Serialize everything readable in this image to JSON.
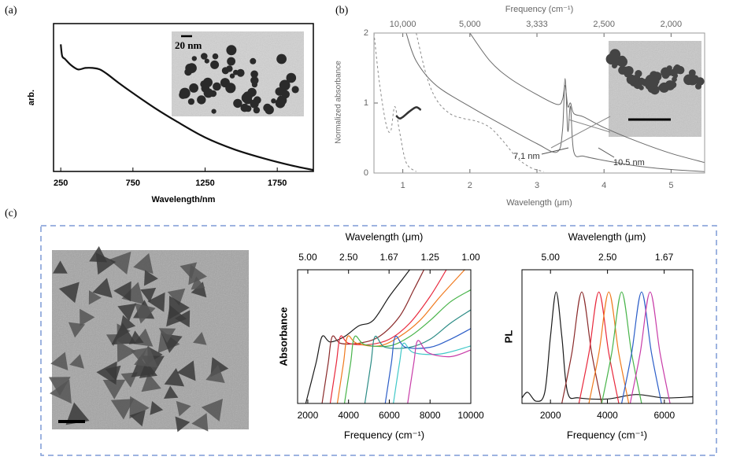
{
  "chart_data": [
    {
      "type": "line",
      "label": "(a)",
      "xlabel": "Wavelength/nm",
      "ylabel": "arb.",
      "inset_label": "20 nm",
      "xlim": [
        200,
        2000
      ],
      "xticks": [
        250,
        750,
        1250,
        1750
      ],
      "ylim": [
        0,
        1
      ],
      "series": [
        {
          "color": "#111111",
          "x": [
            250,
            260,
            280,
            320,
            370,
            420,
            470,
            520,
            570,
            650,
            750,
            900,
            1050,
            1250,
            1450,
            1650,
            1850,
            2000
          ],
          "values": [
            0.86,
            0.78,
            0.76,
            0.72,
            0.69,
            0.7,
            0.7,
            0.69,
            0.66,
            0.6,
            0.53,
            0.43,
            0.34,
            0.23,
            0.15,
            0.09,
            0.04,
            0.01
          ]
        }
      ]
    },
    {
      "type": "line",
      "label": "(b)",
      "xlabel": "Wavelength (μm)",
      "ylabel": "Normalized absorbance",
      "x2label": "Frequency (cm⁻¹)",
      "annotations": [
        "7.1 nm",
        "10.5 nm"
      ],
      "xlim": [
        0.57,
        5.5
      ],
      "xticks": [
        1,
        2,
        3,
        4,
        5
      ],
      "ylim": [
        0,
        2
      ],
      "yticks": [
        0,
        1,
        2
      ],
      "x2lim": [
        17544,
        1818
      ],
      "x2ticks": [
        {
          "value": 10000,
          "label": "10,000"
        },
        {
          "value": 5000,
          "label": "5,000"
        },
        {
          "value": 3333,
          "label": "3,333"
        },
        {
          "value": 2500,
          "label": "2,500"
        },
        {
          "value": 2000,
          "label": "2,000"
        }
      ],
      "series": [
        {
          "color": "#8a8a8a",
          "dashed": true,
          "x": [
            0.57,
            0.65,
            0.75,
            0.82,
            0.88,
            0.95,
            1.05,
            1.2
          ],
          "values": [
            2.0,
            1.3,
            0.7,
            0.6,
            0.95,
            0.6,
            0.15,
            0.02
          ]
        },
        {
          "color": "#8a8a8a",
          "dashed": true,
          "x": [
            1.2,
            1.35,
            1.5,
            1.7,
            1.9,
            2.1,
            2.3,
            2.5,
            2.7,
            2.9,
            3.1
          ],
          "values": [
            2.0,
            1.4,
            1.05,
            0.85,
            0.78,
            0.74,
            0.65,
            0.45,
            0.22,
            0.08,
            0.02
          ]
        },
        {
          "color": "#6a6a6a",
          "x": [
            1.05,
            1.2,
            1.5,
            2.0,
            2.5,
            3.0,
            3.3,
            3.38,
            3.42,
            3.46,
            3.5,
            3.55,
            3.7,
            4.0,
            4.5,
            5.0,
            5.5
          ],
          "values": [
            2.0,
            1.6,
            1.25,
            0.95,
            0.68,
            0.42,
            0.3,
            0.6,
            1.35,
            0.6,
            0.95,
            0.3,
            0.24,
            0.18,
            0.1,
            0.05,
            0.02
          ]
        },
        {
          "color": "#6a6a6a",
          "x": [
            2.0,
            2.3,
            2.6,
            3.0,
            3.3,
            3.38,
            3.42,
            3.46,
            3.5,
            3.55,
            3.7,
            4.0,
            4.5,
            5.0,
            5.5
          ],
          "values": [
            2.0,
            1.6,
            1.35,
            1.12,
            0.98,
            1.05,
            1.25,
            0.95,
            1.0,
            0.85,
            0.8,
            0.65,
            0.45,
            0.28,
            0.15
          ]
        },
        {
          "color": "#333333",
          "line_width": 2.5,
          "x": [
            0.9,
            0.95,
            1.0,
            1.1,
            1.2,
            1.27
          ],
          "values": [
            0.82,
            0.78,
            0.8,
            0.88,
            0.94,
            0.9
          ]
        }
      ]
    },
    {
      "type": "line",
      "label": "(c)",
      "xlabel": "Frequency (cm⁻¹)",
      "ylabel": "Absorbance",
      "x2label": "Wavelength (μm)",
      "xlim": [
        1500,
        10000
      ],
      "xticks": [
        2000,
        4000,
        6000,
        8000,
        10000
      ],
      "ylim": [
        0,
        1
      ],
      "x2lim": [
        6.67,
        1.0
      ],
      "x2ticks": [
        {
          "value": 5,
          "label": "5.00"
        },
        {
          "value": 2.5,
          "label": "2.50"
        },
        1.67,
        1.25,
        {
          "value": 1,
          "label": "1.00"
        }
      ],
      "series": [
        {
          "color": "#1a1a1a",
          "x": [
            1900,
            2400,
            2700,
            3100,
            3800,
            4500,
            5200,
            6000,
            6600,
            7000
          ],
          "values": [
            0,
            0.3,
            0.5,
            0.46,
            0.5,
            0.58,
            0.62,
            0.8,
            0.92,
            1.0
          ]
        },
        {
          "color": "#8a2a2a",
          "x": [
            2700,
            3000,
            3200,
            3600,
            4500,
            5500,
            6500,
            7200,
            7700
          ],
          "values": [
            0,
            0.3,
            0.5,
            0.45,
            0.45,
            0.5,
            0.65,
            0.85,
            1.0
          ]
        },
        {
          "color": "#e8283c",
          "x": [
            3100,
            3400,
            3600,
            4000,
            5000,
            6000,
            7000,
            8000,
            8800
          ],
          "values": [
            0,
            0.3,
            0.5,
            0.45,
            0.44,
            0.48,
            0.6,
            0.8,
            1.0
          ]
        },
        {
          "color": "#f07a1e",
          "x": [
            3450,
            3750,
            3950,
            4400,
            5500,
            6500,
            7500,
            8500,
            9700
          ],
          "values": [
            0,
            0.3,
            0.5,
            0.45,
            0.43,
            0.5,
            0.62,
            0.8,
            1.0
          ]
        },
        {
          "color": "#48b44a",
          "x": [
            3800,
            4100,
            4300,
            4800,
            6000,
            7000,
            8000,
            9000,
            10000
          ],
          "values": [
            0,
            0.3,
            0.5,
            0.44,
            0.43,
            0.5,
            0.62,
            0.76,
            0.85
          ]
        },
        {
          "color": "#2c8c86",
          "x": [
            4800,
            5100,
            5300,
            5800,
            7000,
            8000,
            9000,
            10000
          ],
          "values": [
            0,
            0.3,
            0.5,
            0.42,
            0.42,
            0.48,
            0.6,
            0.7
          ]
        },
        {
          "color": "#2c5ec8",
          "x": [
            5800,
            6100,
            6300,
            6800,
            8000,
            9000,
            10000
          ],
          "values": [
            0,
            0.3,
            0.5,
            0.42,
            0.42,
            0.48,
            0.56
          ]
        },
        {
          "color": "#40c8c8",
          "x": [
            6200,
            6500,
            6700,
            7200,
            8500,
            10000
          ],
          "values": [
            0,
            0.3,
            0.45,
            0.38,
            0.37,
            0.43
          ]
        },
        {
          "color": "#c83ca8",
          "x": [
            6900,
            7200,
            7400,
            7900,
            9000,
            10000
          ],
          "values": [
            0,
            0.3,
            0.47,
            0.38,
            0.35,
            0.4
          ]
        }
      ]
    },
    {
      "type": "line",
      "xlabel": "Frequency (cm⁻¹)",
      "ylabel": "PL",
      "x2label": "Wavelength (μm)",
      "xlim": [
        1000,
        7000
      ],
      "xticks": [
        2000,
        4000,
        6000
      ],
      "ylim": [
        0,
        1.2
      ],
      "x2lim": [
        10,
        1.43
      ],
      "x2ticks": [
        {
          "value": 5,
          "label": "5.00"
        },
        {
          "value": 2.5,
          "label": "2.50"
        },
        1.67
      ],
      "series": [
        {
          "color": "#1a1a1a",
          "x": [
            1000,
            1200,
            1500,
            1800,
            2000,
            2200,
            2400,
            2600,
            3000,
            4000,
            5000,
            6000,
            7000
          ],
          "values": [
            0.05,
            0.1,
            0.02,
            0.1,
            0.6,
            1.0,
            0.6,
            0.1,
            0.05,
            0.04,
            0.08,
            0.05,
            0.06
          ]
        },
        {
          "color": "#8a2a2a",
          "x": [
            2400,
            2750,
            3100,
            3450,
            3800
          ],
          "values": [
            0,
            0.45,
            1.0,
            0.45,
            0
          ]
        },
        {
          "color": "#e8283c",
          "x": [
            3000,
            3350,
            3700,
            4050,
            4400
          ],
          "values": [
            0,
            0.45,
            1.0,
            0.45,
            0
          ]
        },
        {
          "color": "#f07a1e",
          "x": [
            3350,
            3700,
            4050,
            4400,
            4750
          ],
          "values": [
            0,
            0.45,
            1.0,
            0.45,
            0
          ]
        },
        {
          "color": "#48b44a",
          "x": [
            3800,
            4150,
            4500,
            4850,
            5200
          ],
          "values": [
            0,
            0.45,
            1.0,
            0.45,
            0
          ]
        },
        {
          "color": "#2c5ec8",
          "x": [
            4500,
            4850,
            5200,
            5550,
            5900
          ],
          "values": [
            0,
            0.45,
            1.0,
            0.45,
            0
          ]
        },
        {
          "color": "#c83ca8",
          "x": [
            4800,
            5150,
            5500,
            5850,
            6200
          ],
          "values": [
            0,
            0.45,
            1.0,
            0.45,
            0
          ]
        }
      ]
    }
  ]
}
